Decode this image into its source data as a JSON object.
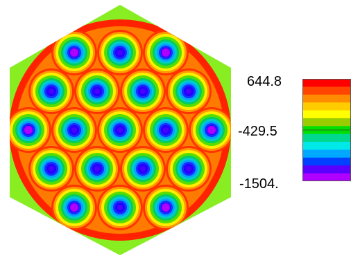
{
  "colorbar": {
    "labels": [
      "644.8",
      "-429.5",
      "-1504."
    ],
    "bands": [
      "#ff0000",
      "#ff4500",
      "#ff8c00",
      "#ffcc00",
      "#ffff00",
      "#9acd00",
      "#00e000",
      "#00d890",
      "#00e8e8",
      "#00a8ff",
      "#0040ff",
      "#5a00ff",
      "#b000ff"
    ],
    "range": [
      -1504,
      644.8
    ]
  },
  "field": {
    "background": "#ffffff",
    "corner_color": "#88ee22",
    "outer_ring_colors": [
      "#ff2200",
      "#ff7a00"
    ],
    "well_rings": [
      "#ff3300",
      "#ff9900",
      "#ffee00",
      "#55dd00",
      "#00cc66",
      "#00cccc",
      "#00a0ff",
      "#1a2cff",
      "#2000ff"
    ],
    "well_center_strong": "#b000ff",
    "well_center_weak": "#4a00ff",
    "rows": [
      {
        "count": 3,
        "strong": [
          0,
          2
        ]
      },
      {
        "count": 4,
        "strong": []
      },
      {
        "count": 5,
        "strong": [
          0,
          4
        ]
      },
      {
        "count": 4,
        "strong": []
      },
      {
        "count": 3,
        "strong": [
          0,
          2
        ]
      }
    ]
  }
}
